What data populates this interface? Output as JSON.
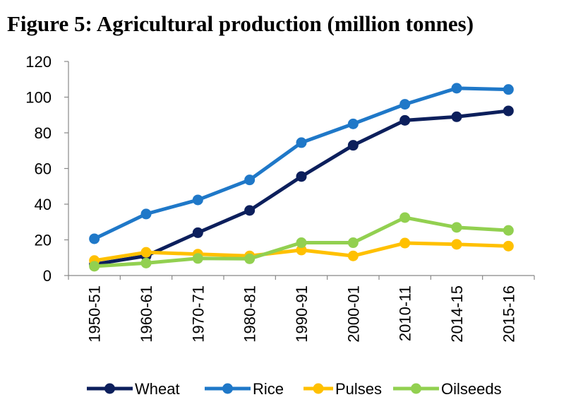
{
  "chart_data": {
    "type": "line",
    "title": "Figure 5: Agricultural production (million tonnes)",
    "categories": [
      "1950-51",
      "1960-61",
      "1970-71",
      "1980-81",
      "1990-91",
      "2000-01",
      "2010-11",
      "2014-15",
      "2015-16"
    ],
    "series": [
      {
        "name": "Wheat",
        "color": "#0c1f5c",
        "values": [
          6.3,
          11,
          24,
          36.5,
          55.5,
          73,
          87,
          89,
          92.3
        ]
      },
      {
        "name": "Rice",
        "color": "#1f78c8",
        "values": [
          20.6,
          34.5,
          42.4,
          53.6,
          74.5,
          85,
          96,
          105,
          104.3
        ]
      },
      {
        "name": "Pulses",
        "color": "#ffc000",
        "values": [
          8.4,
          13,
          12,
          11,
          14.3,
          11,
          18.2,
          17.5,
          16.5
        ]
      },
      {
        "name": "Oilseeds",
        "color": "#92d050",
        "values": [
          5.2,
          7,
          9.6,
          9.4,
          18.4,
          18.4,
          32.5,
          27,
          25.3
        ]
      }
    ],
    "ylim": [
      0,
      120
    ],
    "yticks": [
      0,
      20,
      40,
      60,
      80,
      100,
      120
    ],
    "grid": false,
    "legend": "bottom"
  }
}
